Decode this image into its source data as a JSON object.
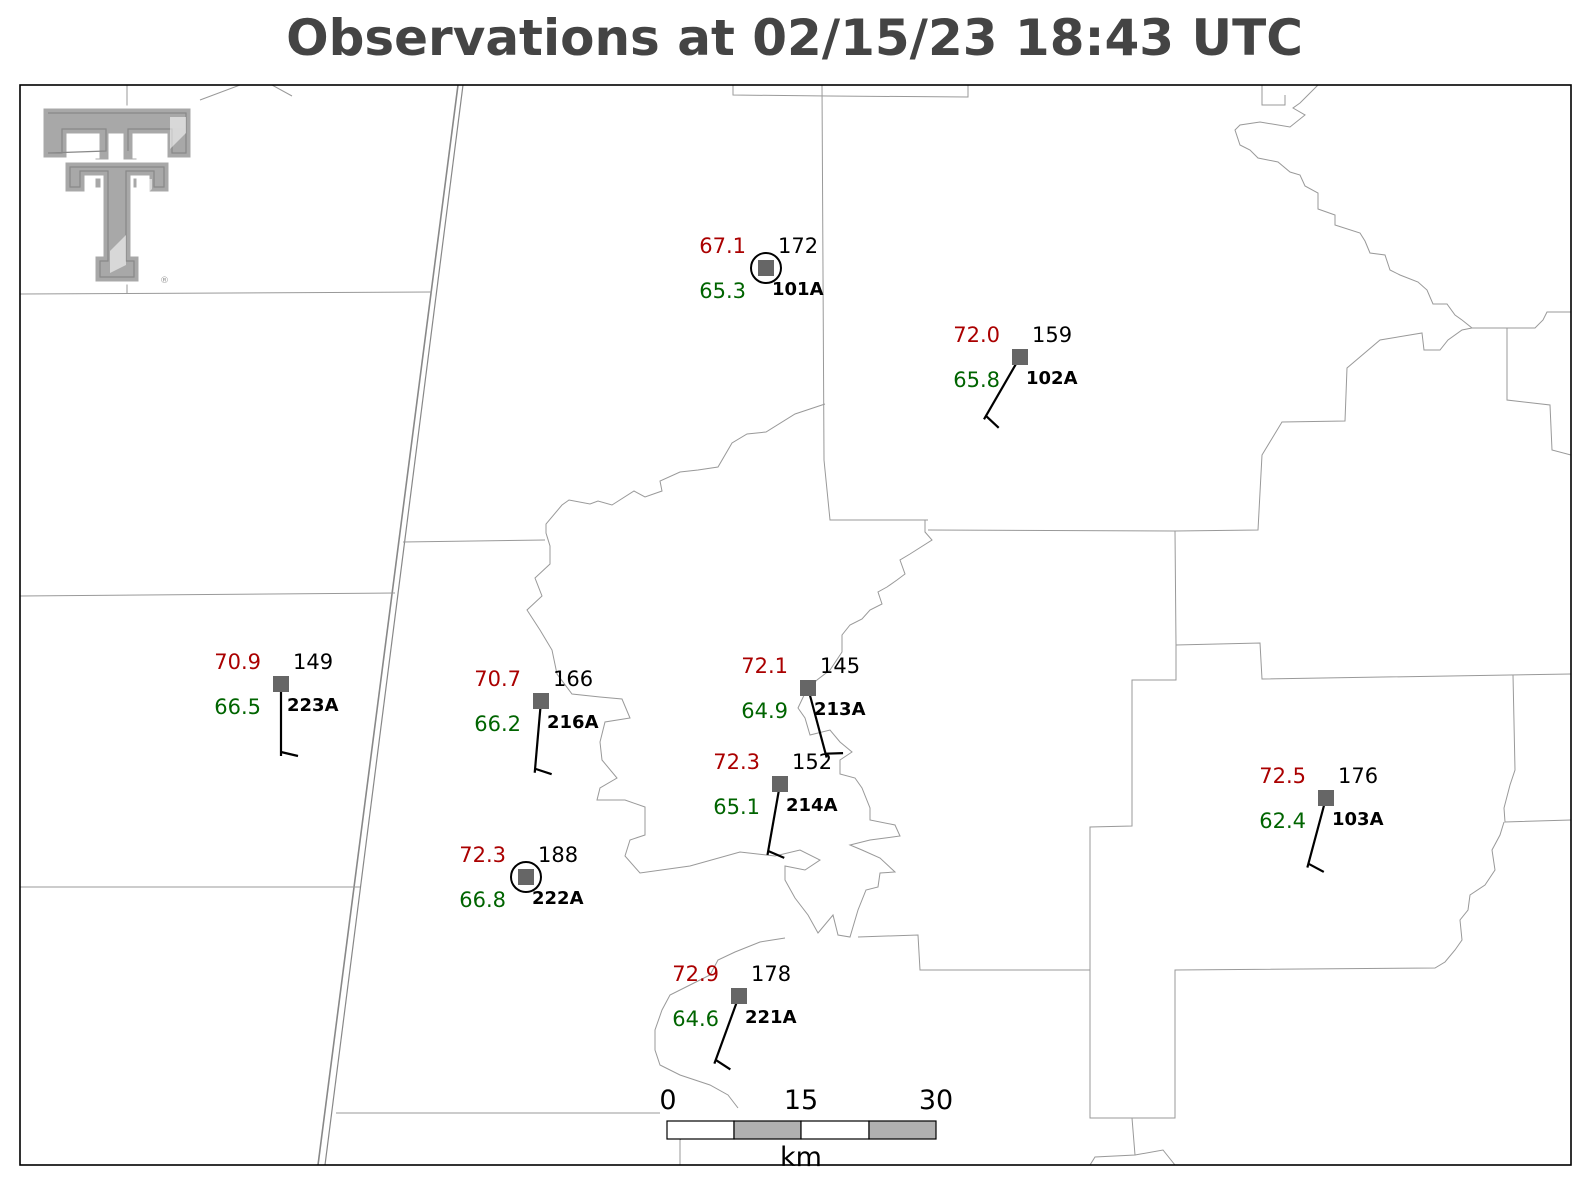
{
  "title": "Observations at 02/15/23 18:43 UTC",
  "colors": {
    "temperature": "#aa0000",
    "dewpoint": "#006400",
    "station_marker": "#666666",
    "boundaries": "#999999",
    "logo": "#a8a8a8"
  },
  "logo": {
    "icon": "texas-tech-double-t-logo",
    "mark": "®"
  },
  "scale_bar": {
    "ticks": [
      "0",
      "15",
      "30"
    ],
    "unit": "km"
  },
  "stations": [
    {
      "id": "101A",
      "temp": "72.0",
      "dewpoint": "65.8",
      "pressure": "159",
      "calm": false,
      "wind_dir": 210,
      "wind_speed": 5
    },
    {
      "id": "101A",
      "temp": "67.1",
      "dewpoint": "65.3",
      "pressure": "172",
      "calm": true,
      "wind_dir": 0,
      "wind_speed": 0
    },
    {
      "id": "102A",
      "temp": "72.0",
      "dewpoint": "65.8",
      "pressure": "159",
      "calm": false,
      "wind_dir": 210,
      "wind_speed": 5
    },
    {
      "id": "223A",
      "temp": "70.9",
      "dewpoint": "66.5",
      "pressure": "149",
      "calm": false,
      "wind_dir": 180,
      "wind_speed": 5
    },
    {
      "id": "216A",
      "temp": "70.7",
      "dewpoint": "66.2",
      "pressure": "166",
      "calm": false,
      "wind_dir": 185,
      "wind_speed": 5
    },
    {
      "id": "213A",
      "temp": "72.1",
      "dewpoint": "64.9",
      "pressure": "145",
      "calm": false,
      "wind_dir": 165,
      "wind_speed": 5
    },
    {
      "id": "214A",
      "temp": "72.3",
      "dewpoint": "65.1",
      "pressure": "152",
      "calm": false,
      "wind_dir": 190,
      "wind_speed": 5
    },
    {
      "id": "222A",
      "temp": "72.3",
      "dewpoint": "66.8",
      "pressure": "188",
      "calm": true,
      "wind_dir": 0,
      "wind_speed": 0
    },
    {
      "id": "221A",
      "temp": "72.9",
      "dewpoint": "64.6",
      "pressure": "178",
      "calm": false,
      "wind_dir": 200,
      "wind_speed": 5
    },
    {
      "id": "103A",
      "temp": "72.5",
      "dewpoint": "62.4",
      "pressure": "176",
      "calm": false,
      "wind_dir": 195,
      "wind_speed": 5
    }
  ]
}
